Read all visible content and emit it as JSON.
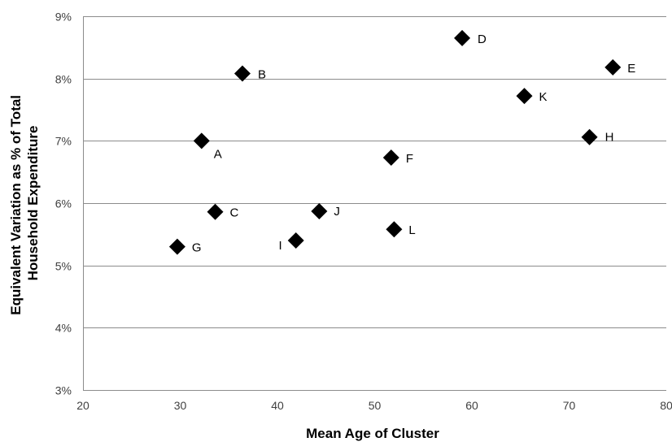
{
  "chart_data": {
    "type": "scatter",
    "title": "",
    "xlabel": "Mean Age of Cluster",
    "ylabel_lines": [
      "Equivalent Variation as % of Total",
      "Household Expenditure"
    ],
    "xlim": [
      20,
      80
    ],
    "ylim": [
      3,
      9
    ],
    "x_ticks": [
      20,
      30,
      40,
      50,
      60,
      70,
      80
    ],
    "y_ticks": [
      3,
      4,
      5,
      6,
      7,
      8,
      9
    ],
    "y_tick_suffix": "%",
    "grid": "horizontal",
    "legend": "none",
    "marker": "diamond",
    "marker_color": "#000000",
    "points": [
      {
        "label": "A",
        "x": 32.2,
        "y": 7.0
      },
      {
        "label": "B",
        "x": 36.4,
        "y": 8.08
      },
      {
        "label": "C",
        "x": 33.6,
        "y": 5.86
      },
      {
        "label": "D",
        "x": 59.0,
        "y": 8.65
      },
      {
        "label": "E",
        "x": 74.5,
        "y": 8.18
      },
      {
        "label": "F",
        "x": 51.7,
        "y": 6.73
      },
      {
        "label": "G",
        "x": 29.7,
        "y": 5.3
      },
      {
        "label": "H",
        "x": 72.1,
        "y": 7.06
      },
      {
        "label": "I",
        "x": 41.9,
        "y": 5.4
      },
      {
        "label": "J",
        "x": 44.3,
        "y": 5.87
      },
      {
        "label": "K",
        "x": 65.4,
        "y": 7.72
      },
      {
        "label": "L",
        "x": 52.0,
        "y": 5.58
      }
    ]
  }
}
